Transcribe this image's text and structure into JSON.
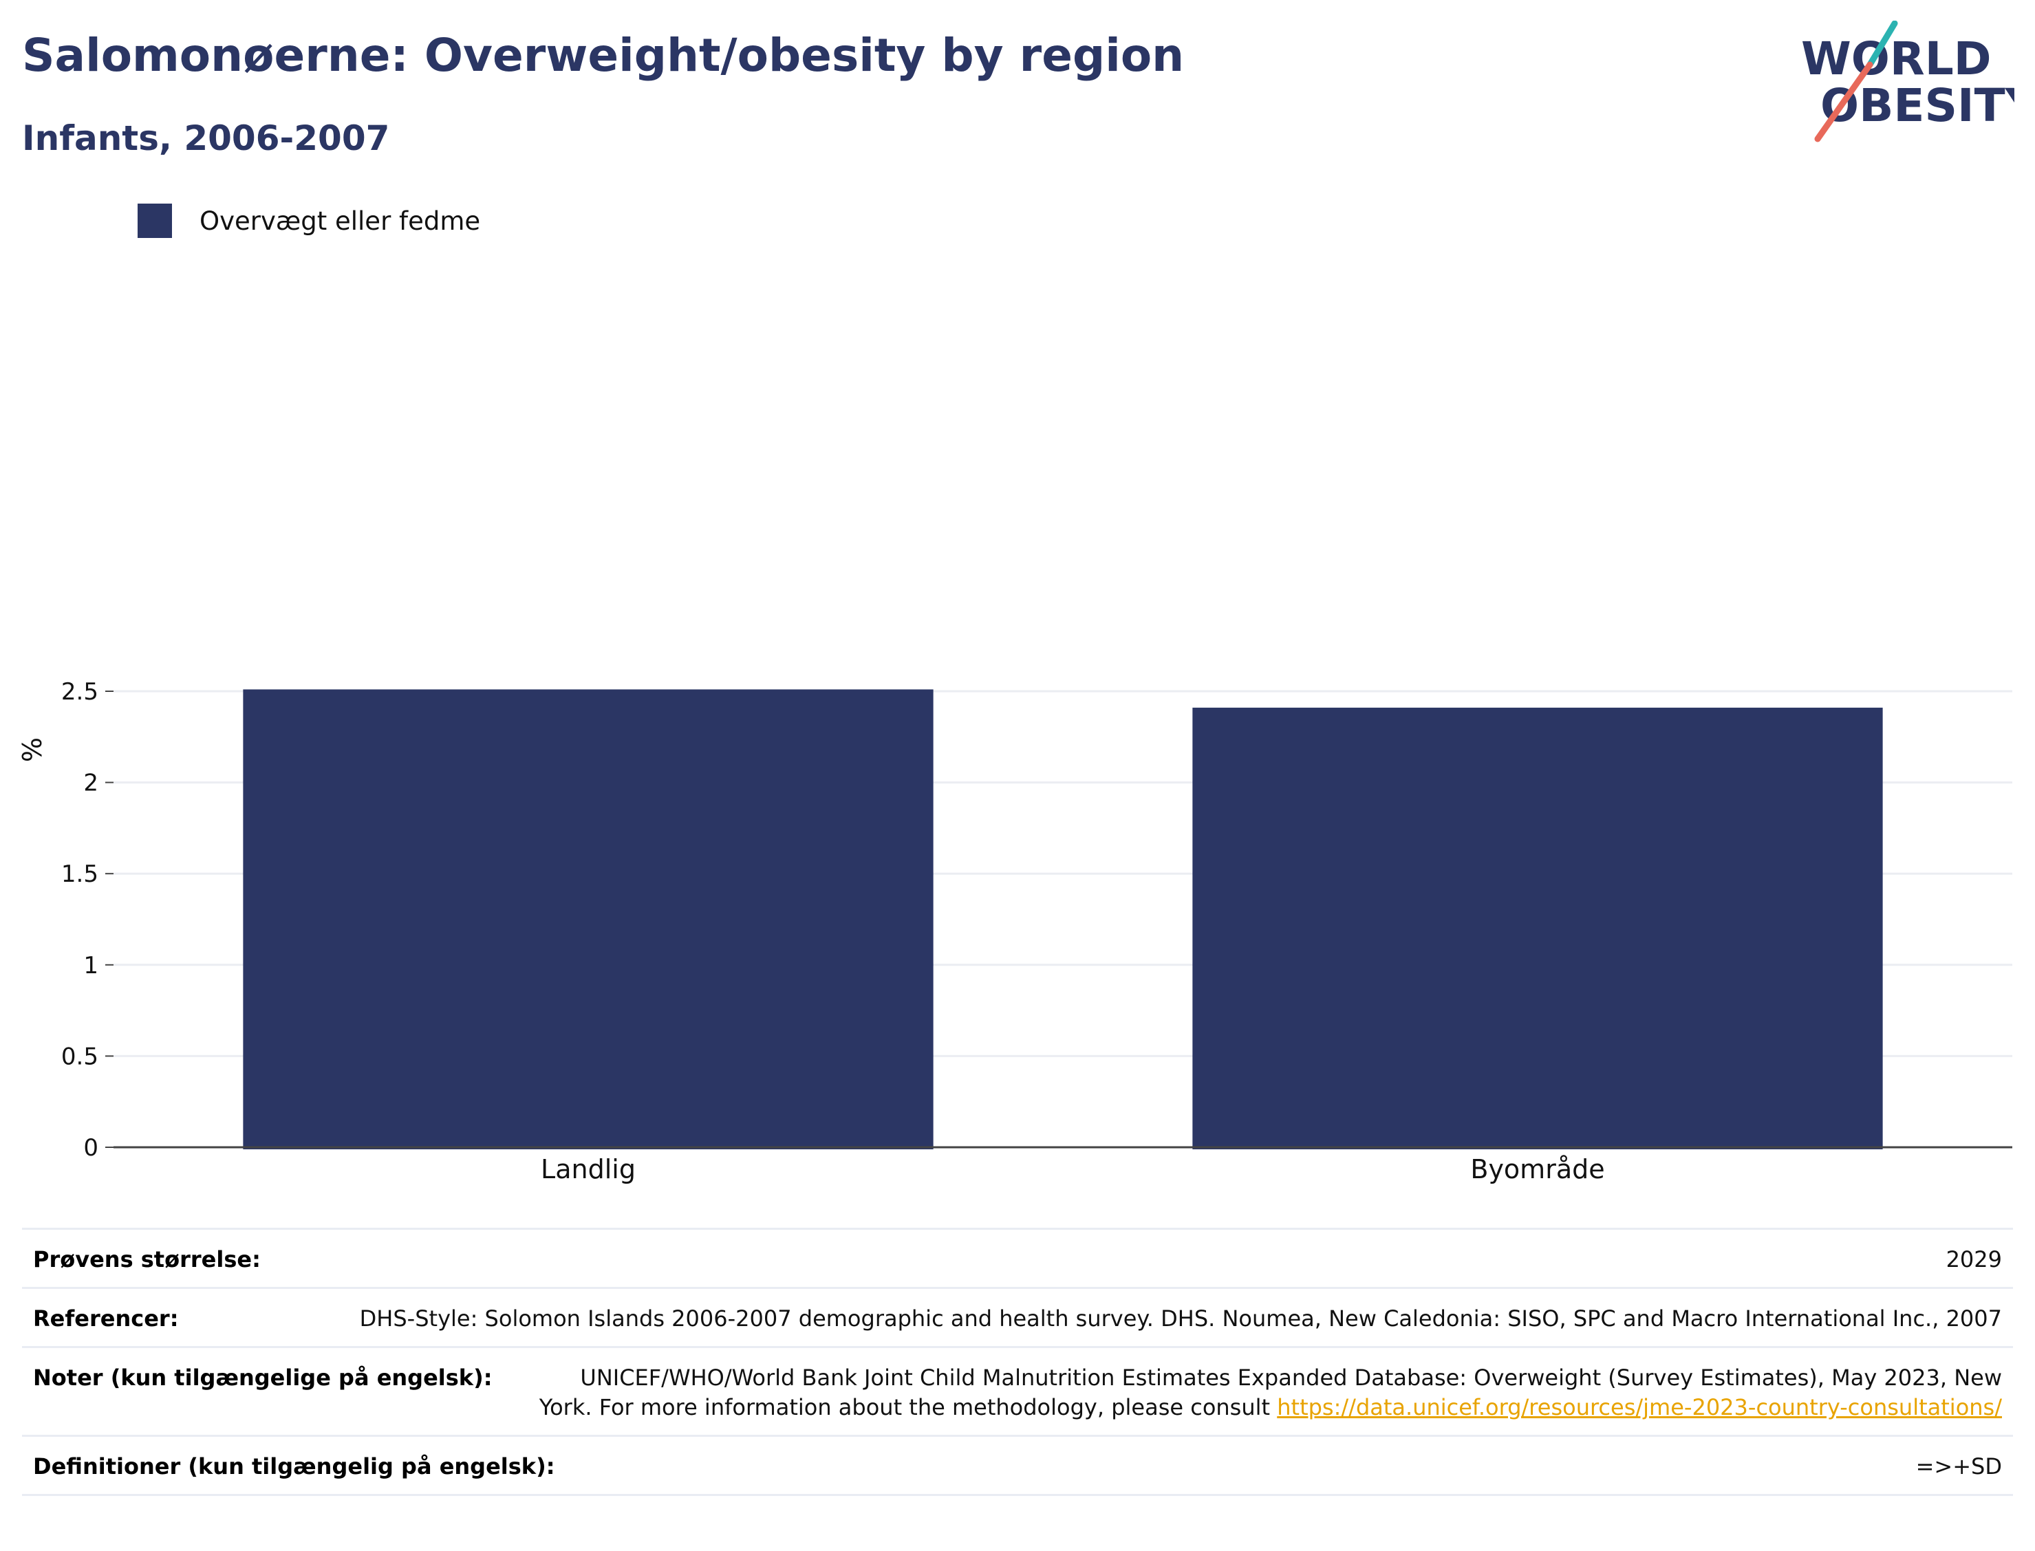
{
  "header": {
    "title": "Salomonøerne: Overweight/obesity by region",
    "subtitle": "Infants, 2006-2007",
    "logo_line1": "WORLD",
    "logo_line2": "OBESITY"
  },
  "colors": {
    "primary": "#2b3664",
    "logo_teal": "#2bb3b1",
    "logo_coral": "#e8695a",
    "link": "#e8a300",
    "grid": "#ebedf2"
  },
  "chart_data": {
    "type": "bar",
    "categories": [
      "Landlig",
      "Byområde"
    ],
    "series": [
      {
        "name": "Overvægt eller fedme",
        "values": [
          2.51,
          2.41
        ]
      }
    ],
    "ylabel": "%",
    "xlabel": "",
    "ylim": [
      0,
      2.5
    ],
    "yticks": [
      0,
      0.5,
      1,
      1.5,
      2,
      2.5
    ],
    "ytick_labels": [
      "0",
      "0.5",
      "1",
      "1.5",
      "2",
      "2.5"
    ],
    "grid": true,
    "legend_position": "top-left"
  },
  "info": {
    "sample_size_label": "Prøvens størrelse:",
    "sample_size_value": "2029",
    "references_label": "Referencer:",
    "references_value": "DHS-Style: Solomon Islands 2006-2007 demographic and health survey. DHS. Noumea, New Caledonia: SISO, SPC and Macro International Inc., 2007",
    "notes_label": "Noter (kun tilgængelige på engelsk):",
    "notes_value": "UNICEF/WHO/World Bank Joint Child Malnutrition Estimates Expanded Database: Overweight (Survey Estimates), May 2023, New York. For more information about the methodology, please consult",
    "notes_link": "https://data.unicef.org/resources/jme-2023-country-consultations/",
    "definitions_label": "Definitioner (kun tilgængelig på engelsk):",
    "definitions_value": "=>+SD"
  }
}
